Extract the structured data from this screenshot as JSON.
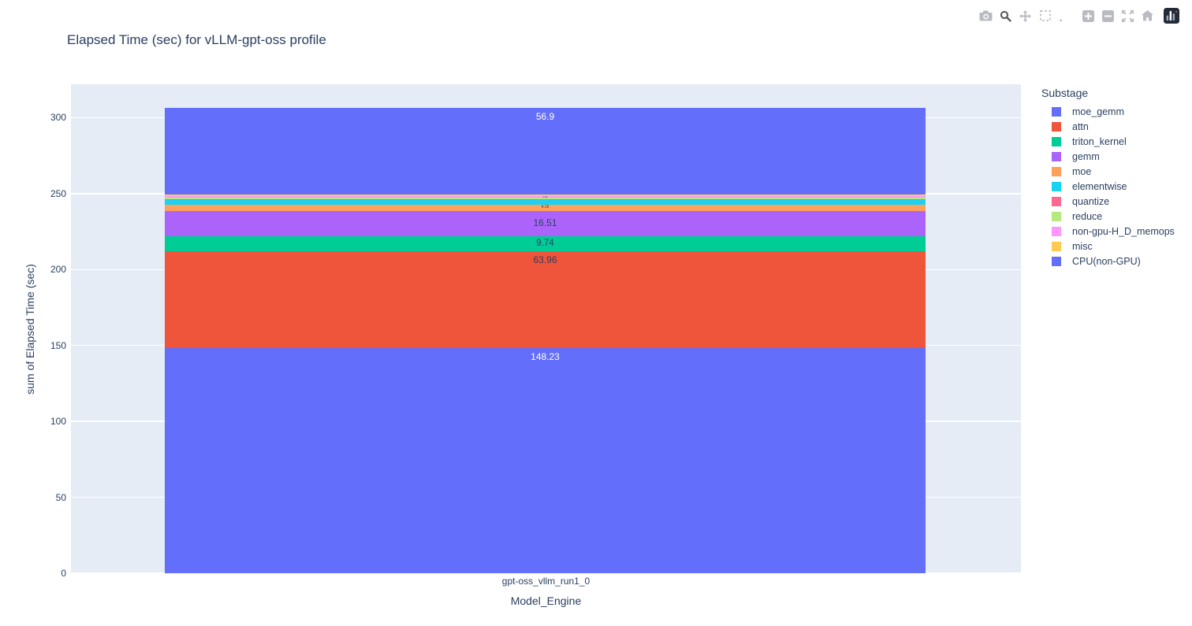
{
  "modebar": {
    "icons": [
      {
        "name": "camera",
        "active": false
      },
      {
        "name": "zoom",
        "active": true
      },
      {
        "name": "pan",
        "active": false
      },
      {
        "name": "box-select",
        "active": false
      },
      {
        "name": "lasso-select",
        "active": false
      },
      {
        "name": "zoom-in",
        "active": false,
        "group_gap": true
      },
      {
        "name": "zoom-out",
        "active": false
      },
      {
        "name": "autoscale",
        "active": false
      },
      {
        "name": "reset-axes",
        "active": false
      },
      {
        "name": "plotly-logo",
        "active": false,
        "group_gap": true
      }
    ],
    "icon_color": "#b9bbc0",
    "icon_active_color": "#5a5d63"
  },
  "chart_data": {
    "type": "bar",
    "stacked": true,
    "orientation": "vertical",
    "title": "Elapsed Time (sec) for vLLM-gpt-oss profile",
    "xlabel": "Model_Engine",
    "ylabel": "sum of Elapsed Time (sec)",
    "categories": [
      "gpt-oss_vllm_run1_0"
    ],
    "ylim": [
      0,
      322
    ],
    "yticks": [
      0,
      50,
      100,
      150,
      200,
      250,
      300
    ],
    "grid": true,
    "plot_bg": "#e5ecf6",
    "grid_color": "#ffffff",
    "text_color": "#2a3f5f",
    "legend": {
      "title": "Substage",
      "position": "right"
    },
    "series": [
      {
        "name": "moe_gemm",
        "color": "#636efa",
        "values": [
          148.23
        ],
        "label": "148.23",
        "label_color": "#ffffff",
        "label_size": 12
      },
      {
        "name": "attn",
        "color": "#ef553b",
        "values": [
          63.96
        ],
        "label": "63.96",
        "label_color": "#2a3f5f",
        "label_size": 12
      },
      {
        "name": "triton_kernel",
        "color": "#00cc96",
        "values": [
          9.74
        ],
        "label": "9.74",
        "label_color": "#2a3f5f",
        "label_size": 11.5
      },
      {
        "name": "gemm",
        "color": "#ab63fa",
        "values": [
          16.51
        ],
        "label": "16.51",
        "label_color": "#2a3f5f",
        "label_size": 12
      },
      {
        "name": "moe",
        "color": "#ffa15a",
        "values": [
          4.15
        ],
        "label": "4.15",
        "label_color": "#2a3f5f",
        "label_size": 5
      },
      {
        "name": "elementwise",
        "color": "#19d3f3",
        "values": [
          3.11
        ],
        "label": "",
        "label_color": "#2a3f5f",
        "label_size": 0
      },
      {
        "name": "quantize",
        "color": "#ff6692",
        "values": [
          0.52
        ],
        "label": "",
        "label_color": "#2a3f5f",
        "label_size": 0
      },
      {
        "name": "reduce",
        "color": "#b6e880",
        "values": [
          0.93
        ],
        "label": "",
        "label_color": "#2a3f5f",
        "label_size": 0
      },
      {
        "name": "non-gpu-H_D_memops",
        "color": "#ff97ff",
        "values": [
          1.04
        ],
        "label": "1.04",
        "label_color": "#2a3f5f",
        "label_size": 3
      },
      {
        "name": "misc",
        "color": "#fecb52",
        "values": [
          1.3
        ],
        "label": "",
        "label_color": "#2a3f5f",
        "label_size": 0
      },
      {
        "name": "CPU(non-GPU)",
        "color": "#636efa",
        "values": [
          56.9
        ],
        "label": "56.9",
        "label_color": "#ffffff",
        "label_size": 12
      }
    ]
  }
}
